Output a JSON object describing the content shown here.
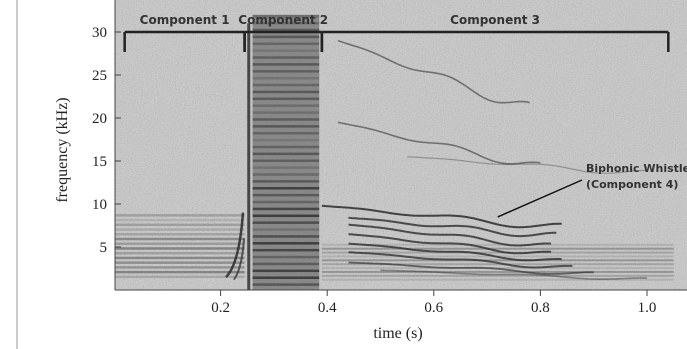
{
  "axes": {
    "x_label": "time (s)",
    "y_label": "frequency (kHz)",
    "x_ticks": [
      {
        "value": 0.2,
        "label": "0.2"
      },
      {
        "value": 0.4,
        "label": "0.4"
      },
      {
        "value": 0.6,
        "label": "0.6"
      },
      {
        "value": 0.8,
        "label": "0.8"
      },
      {
        "value": 1.0,
        "label": "1.0"
      }
    ],
    "y_ticks": [
      {
        "value": 5,
        "label": "5"
      },
      {
        "value": 10,
        "label": "10"
      },
      {
        "value": 15,
        "label": "15"
      },
      {
        "value": 20,
        "label": "20"
      },
      {
        "value": 25,
        "label": "25"
      },
      {
        "value": 30,
        "label": "30"
      }
    ],
    "x_range": [
      0.0,
      1.05
    ],
    "y_range": [
      0,
      33
    ]
  },
  "components": [
    {
      "label": "Component 1",
      "start": 0.02,
      "end": 0.245
    },
    {
      "label": "Component 2",
      "start": 0.245,
      "end": 0.39
    },
    {
      "label": "Component 3",
      "start": 0.39,
      "end": 1.04
    }
  ],
  "annotation": {
    "line1": "Biphonic Whistle",
    "line2": "(Component 4)",
    "target_time": 0.72,
    "target_freq": 8.5
  },
  "colors": {
    "background": "#c9c9c9",
    "trace": "#2a2a2a",
    "bracket": "#222222"
  }
}
